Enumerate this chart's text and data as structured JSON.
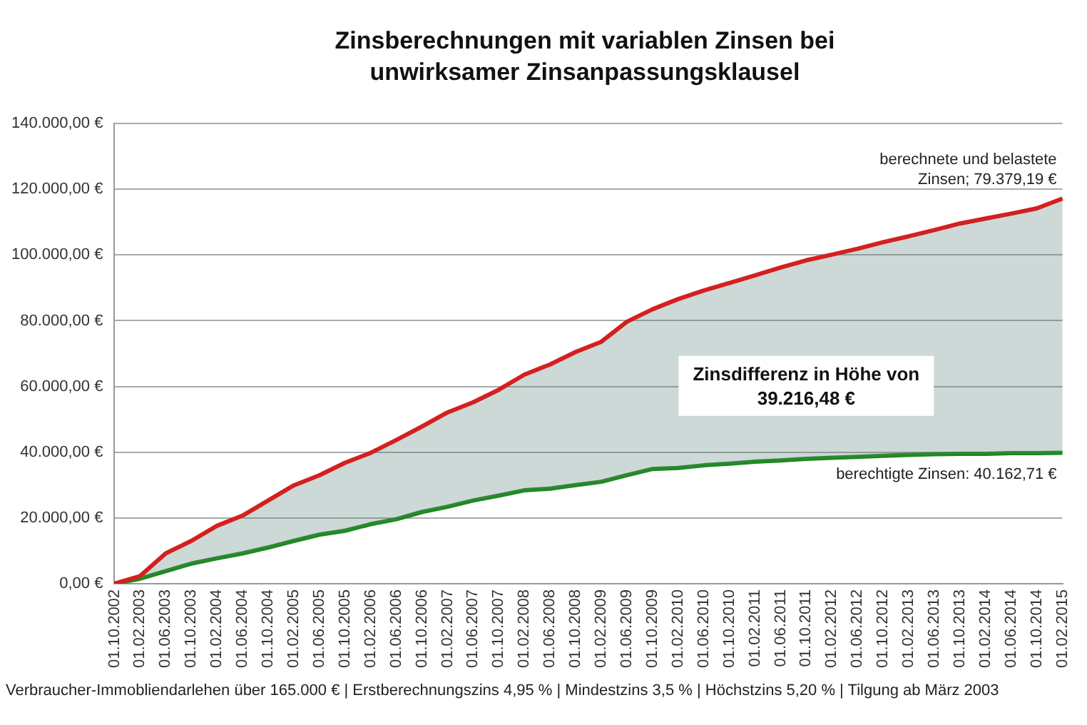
{
  "chart_data": {
    "type": "line",
    "title": "Zinsberechnungen mit variablen Zinsen bei unwirksamer Zinsanpassungsklausel",
    "categories": [
      "01.10.2002",
      "01.02.2003",
      "01.06.2003",
      "01.10.2003",
      "01.02.2004",
      "01.06.2004",
      "01.10.2004",
      "01.02.2005",
      "01.06.2005",
      "01.10.2005",
      "01.02.2006",
      "01.06.2006",
      "01.10.2006",
      "01.02.2007",
      "01.06.2007",
      "01.10.2007",
      "01.02.2008",
      "01.06.2008",
      "01.10.2008",
      "01.02.2009",
      "01.06.2009",
      "01.10.2009",
      "01.02.2010",
      "01.06.2010",
      "01.10.2010",
      "01.02.2011",
      "01.06.2011",
      "01.10.2011",
      "01.02.2012",
      "01.06.2012",
      "01.10.2012",
      "01.02.2013",
      "01.06.2013",
      "01.10.2013",
      "01.02.2014",
      "01.06.2014",
      "01.10.2014",
      "01.02.2015"
    ],
    "series": [
      {
        "color": "#d42020",
        "values": [
          0,
          2300,
          9200,
          13000,
          17600,
          20700,
          25300,
          29900,
          33000,
          36800,
          39800,
          43700,
          47800,
          52100,
          55200,
          59000,
          63600,
          66700,
          70500,
          73600,
          79700,
          83500,
          86600,
          89200,
          91500,
          93800,
          96200,
          98400,
          100100,
          101900,
          103900,
          105700,
          107600,
          109600,
          111100,
          112600,
          114200,
          117200
        ]
      },
      {
        "color": "#1e8a1e",
        "values": [
          0,
          1500,
          3800,
          6100,
          7700,
          9200,
          11000,
          13000,
          14900,
          16100,
          18100,
          19600,
          21800,
          23400,
          25300,
          26800,
          28400,
          28900,
          30000,
          31000,
          33000,
          34900,
          35200,
          36000,
          36500,
          37100,
          37500,
          38000,
          38300,
          38600,
          38900,
          39200,
          39400,
          39500,
          39500,
          39700,
          39700,
          39800
        ]
      }
    ],
    "ylim": [
      0,
      140000
    ],
    "yticks": [
      {
        "value": 0,
        "label": "0,00 €"
      },
      {
        "value": 20000,
        "label": "20.000,00 €"
      },
      {
        "value": 40000,
        "label": "40.000,00 €"
      },
      {
        "value": 60000,
        "label": "60.000,00 €"
      },
      {
        "value": 80000,
        "label": "80.000,00 €"
      },
      {
        "value": 100000,
        "label": "100.000,00 €"
      },
      {
        "value": 120000,
        "label": "120.000,00 €"
      },
      {
        "value": 140000,
        "label": "140.000,00 €"
      }
    ],
    "grid": "y",
    "legend": false,
    "marker": "none",
    "line_style": "solid",
    "annotations": [
      {
        "text": "berechnete und belastete\nZinsen; 79.379,19 €",
        "x": "01.02.2015",
        "y": 117200
      },
      {
        "text": "berechtigte Zinsen: 40.162,71 €",
        "x": "01.02.2015",
        "y": 39800
      },
      "Zinsdifferenz in Höhe von\n39.216,48 €",
      "Verbraucher-Immobliendarlehen über 165.000 €  |  Erstberechnungszins 4,95 %  |  Mindestzins 3,5 %  |  Höchstzins 5,20 %  |  Tilgung ab März 2003"
    ]
  }
}
